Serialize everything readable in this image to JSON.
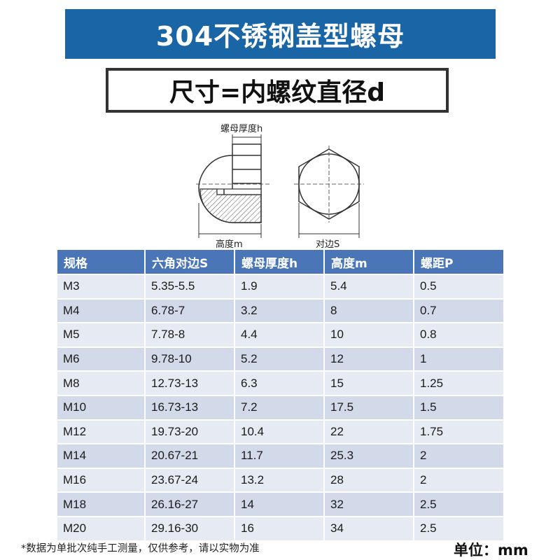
{
  "header": {
    "title": "304不锈钢盖型螺母",
    "subtitle": "尺寸=内螺纹直径d"
  },
  "diagram": {
    "label_thickness": "螺母厚度h",
    "label_height": "高度m",
    "label_across": "对边S"
  },
  "table": {
    "columns": [
      "规格",
      "六角对边S",
      "螺母厚度h",
      "高度m",
      "螺距P"
    ],
    "rows": [
      [
        "M3",
        "5.35-5.5",
        "1.9",
        "5.4",
        "0.5"
      ],
      [
        "M4",
        "6.78-7",
        "3.2",
        "8",
        "0.7"
      ],
      [
        "M5",
        "7.78-8",
        "4.4",
        "10",
        "0.8"
      ],
      [
        "M6",
        "9.78-10",
        "5.2",
        "12",
        "1"
      ],
      [
        "M8",
        "12.73-13",
        "6.3",
        "15",
        "1.25"
      ],
      [
        "M10",
        "16.73-13",
        "7.2",
        "17.5",
        "1.5"
      ],
      [
        "M12",
        "19.73-20",
        "10.4",
        "22",
        "1.75"
      ],
      [
        "M14",
        "20.67-21",
        "11.7",
        "25.3",
        "2"
      ],
      [
        "M16",
        "23.67-24",
        "13.2",
        "28",
        "2"
      ],
      [
        "M18",
        "26.16-27",
        "14",
        "32",
        "2.5"
      ],
      [
        "M20",
        "29.16-30",
        "16",
        "34",
        "2.5"
      ]
    ]
  },
  "footer": {
    "note": "*数据为单批次纯手工测量，仅供参考，请以实物为准",
    "unit": "单位：mm"
  },
  "colors": {
    "banner": "#1a65a5",
    "table_header": "#4a76b8",
    "row_light": "#e6ebf3",
    "row_dark": "#d2dae9"
  }
}
